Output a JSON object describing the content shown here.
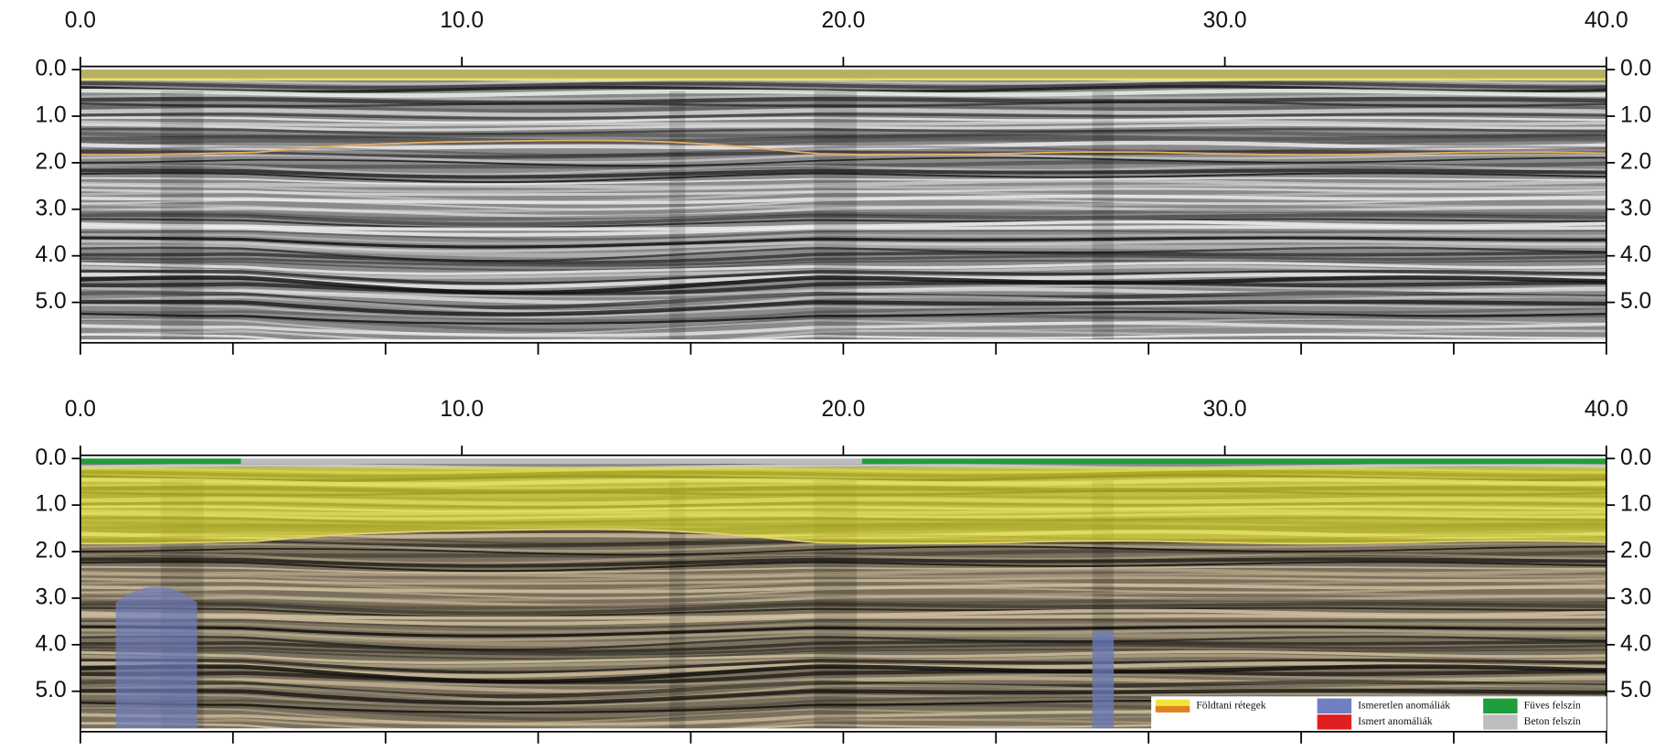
{
  "chart_data": [
    {
      "type": "radargram",
      "xlim": [
        0,
        40
      ],
      "xticks": [
        {
          "value": 0,
          "label": "0.0"
        },
        {
          "value": 10,
          "label": "10.0"
        },
        {
          "value": 20,
          "label": "20.0"
        },
        {
          "value": 30,
          "label": "30.0"
        },
        {
          "value": 40,
          "label": "40.0"
        }
      ],
      "xminor": [
        0,
        4,
        8,
        12,
        16,
        20,
        24,
        28,
        32,
        36,
        40
      ],
      "ylim": [
        0,
        5.8
      ],
      "yticks": [
        {
          "value": 0,
          "label": "0.0"
        },
        {
          "value": 1,
          "label": "1.0"
        },
        {
          "value": 2,
          "label": "2.0"
        },
        {
          "value": 3,
          "label": "3.0"
        },
        {
          "value": 4,
          "label": "4.0"
        },
        {
          "value": 5,
          "label": "5.0"
        }
      ]
    },
    {
      "type": "radargram-interpreted",
      "xlim": [
        0,
        40
      ],
      "xticks": [
        {
          "value": 0,
          "label": "0.0"
        },
        {
          "value": 10,
          "label": "10.0"
        },
        {
          "value": 20,
          "label": "20.0"
        },
        {
          "value": 30,
          "label": "30.0"
        },
        {
          "value": 40,
          "label": "40.0"
        }
      ],
      "xminor": [
        0,
        4,
        8,
        12,
        16,
        20,
        24,
        28,
        32,
        36,
        40
      ],
      "ylim": [
        0,
        5.8
      ],
      "yticks": [
        {
          "value": 0,
          "label": "0.0"
        },
        {
          "value": 1,
          "label": "1.0"
        },
        {
          "value": 2,
          "label": "2.0"
        },
        {
          "value": 3,
          "label": "3.0"
        },
        {
          "value": 4,
          "label": "4.0"
        },
        {
          "value": 5,
          "label": "5.0"
        }
      ],
      "legend": [
        {
          "name": "Földtani rétegek",
          "color": "#f2e33a",
          "color2": "#e0801e"
        },
        {
          "name": "Ismeretlen anomáliák",
          "color": "#6f7fc0"
        },
        {
          "name": "Füves felszín",
          "color": "#1f9e3c"
        },
        {
          "name": "Ismert anomáliák",
          "color": "#e02020"
        },
        {
          "name": "Beton felszín",
          "color": "#bdbdbd"
        }
      ]
    }
  ]
}
